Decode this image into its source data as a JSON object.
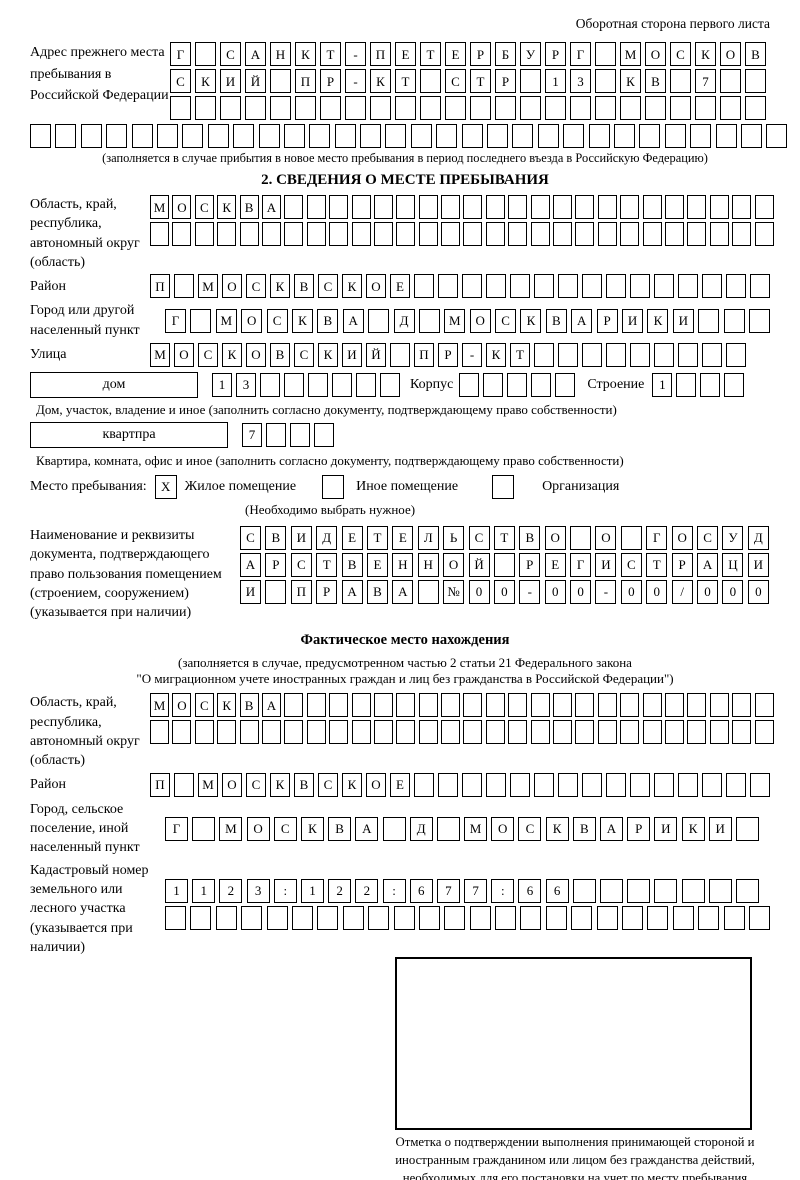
{
  "header": {
    "note": "Оборотная сторона первого листа"
  },
  "colors": {
    "ink": "#000000",
    "paper": "#ffffff"
  },
  "prev_address": {
    "label": "Адрес прежнего места пребывания в Российской Федерации",
    "caption": "(заполняется в случае прибытия в новое место пребывания в период последнего въезда в Российскую Федерацию)"
  },
  "section2": {
    "title": "2. СВЕДЕНИЯ О МЕСТЕ ПРЕБЫВАНИЯ",
    "region_label": "Область, край, республика, автономный округ (область)",
    "district_label": "Район",
    "city_label": "Город или другой населенный пункт",
    "street_label": "Улица",
    "house_box_label": "дом",
    "korpus_label": "Корпус",
    "stroenie_label": "Строение",
    "house_caption": "Дом, участок, владение и иное (заполнить согласно документу, подтверждающему право собственности)",
    "apartment_box_label": "квартпра",
    "apartment_caption": "Квартира, комната, офис и иное (заполнить согласно документу, подтверждающему право собственности)",
    "stay_type": {
      "label": "Место пребывания:",
      "options": [
        {
          "label": "Жилое помещение",
          "mark": "X"
        },
        {
          "label": "Иное помещение",
          "mark": ""
        },
        {
          "label": "Организация",
          "mark": ""
        }
      ],
      "note": "(Необходимо выбрать нужное)"
    },
    "doc_label": "Наименование и реквизиты документа, подтверждающего право пользования помещением (строением, сооружением) (указывается при наличии)"
  },
  "actual_location": {
    "title": "Фактическое место нахождения",
    "caption_line1": "(заполняется в случае, предусмотренном частью 2 статьи 21 Федерального закона",
    "caption_line2": "\"О миграционном учете иностранных граждан и лиц без гражданства в Российской Федерации\")",
    "region_label": "Область, край, республика, автономный округ (область)",
    "district_label": "Район",
    "city_label": "Город, сельское поселение, иной населенный пункт",
    "cadastre_label": "Кадастровый номер земельного или лесного участка (указывается при наличии)",
    "mark_caption": "Отметка о подтверждении выполнения принимающей стороной и иностранным гражданином или лицом без гражданства действий, необходимых для его постановки на учет по месту пребывания"
  },
  "cell_rows": {
    "prev1": {
      "count": 24,
      "chars": [
        "Г",
        "",
        "С",
        "А",
        "Н",
        "К",
        "Т",
        "-",
        "П",
        "Е",
        "Т",
        "Е",
        "Р",
        "Б",
        "У",
        "Р",
        "Г",
        "",
        "М",
        "О",
        "С",
        "К",
        "О",
        "В"
      ]
    },
    "prev2": {
      "count": 24,
      "chars": [
        "С",
        "К",
        "И",
        "Й",
        "",
        "П",
        "Р",
        "-",
        "К",
        "Т",
        "",
        "С",
        "Т",
        "Р",
        "",
        "1",
        "3",
        "",
        "К",
        "В",
        "",
        "7",
        "",
        ""
      ]
    },
    "prev3": {
      "count": 24,
      "chars": []
    },
    "prev4": {
      "count": 30,
      "chars": []
    },
    "region1a": {
      "count": 28,
      "chars": [
        "М",
        "О",
        "С",
        "К",
        "В",
        "А"
      ]
    },
    "region1b": {
      "count": 28,
      "chars": []
    },
    "district1": {
      "count": 26,
      "chars": [
        "П",
        "",
        "М",
        "О",
        "С",
        "К",
        "В",
        "С",
        "К",
        "О",
        "Е"
      ]
    },
    "city1": {
      "count": 24,
      "chars": [
        "Г",
        "",
        "М",
        "О",
        "С",
        "К",
        "В",
        "А",
        "",
        "Д",
        "",
        "М",
        "О",
        "С",
        "К",
        "В",
        "А",
        "Р",
        "И",
        "К",
        "И"
      ]
    },
    "street1": {
      "count": 25,
      "chars": [
        "М",
        "О",
        "С",
        "К",
        "О",
        "В",
        "С",
        "К",
        "И",
        "Й",
        "",
        "П",
        "Р",
        "-",
        "К",
        "Т"
      ]
    },
    "house": {
      "count": 8,
      "chars": [
        "1",
        "3"
      ]
    },
    "korpus": {
      "count": 5,
      "chars": []
    },
    "stroenie": {
      "count": 4,
      "chars": [
        "1"
      ]
    },
    "apartment": {
      "count": 4,
      "chars": [
        "7"
      ]
    },
    "doc1": {
      "count": 21,
      "chars": [
        "С",
        "В",
        "И",
        "Д",
        "Е",
        "Т",
        "Е",
        "Л",
        "Ь",
        "С",
        "Т",
        "В",
        "О",
        "",
        "О",
        "",
        "Г",
        "О",
        "С",
        "У",
        "Д"
      ]
    },
    "doc2": {
      "count": 21,
      "chars": [
        "А",
        "Р",
        "С",
        "Т",
        "В",
        "Е",
        "Н",
        "Н",
        "О",
        "Й",
        "",
        "Р",
        "Е",
        "Г",
        "И",
        "С",
        "Т",
        "Р",
        "А",
        "Ц",
        "И"
      ]
    },
    "doc3": {
      "count": 21,
      "chars": [
        "И",
        "",
        "П",
        "Р",
        "А",
        "В",
        "А",
        "",
        "№",
        "0",
        "0",
        "-",
        "0",
        "0",
        "-",
        "0",
        "0",
        "/",
        "0",
        "0",
        "0"
      ]
    },
    "region2a": {
      "count": 28,
      "chars": [
        "М",
        "О",
        "С",
        "К",
        "В",
        "А"
      ]
    },
    "region2b": {
      "count": 28,
      "chars": []
    },
    "district2": {
      "count": 26,
      "chars": [
        "П",
        "",
        "М",
        "О",
        "С",
        "К",
        "В",
        "С",
        "К",
        "О",
        "Е"
      ]
    },
    "city2": {
      "count": 22,
      "chars": [
        "Г",
        "",
        "М",
        "О",
        "С",
        "К",
        "В",
        "А",
        "",
        "Д",
        "",
        "М",
        "О",
        "С",
        "К",
        "В",
        "А",
        "Р",
        "И",
        "К",
        "И"
      ]
    },
    "cad1": {
      "count": 22,
      "chars": [
        "1",
        "1",
        "2",
        "3",
        ":",
        "1",
        "2",
        "2",
        ":",
        "6",
        "7",
        "7",
        ":",
        "6",
        "6"
      ]
    },
    "cad2": {
      "count": 24,
      "chars": []
    }
  }
}
